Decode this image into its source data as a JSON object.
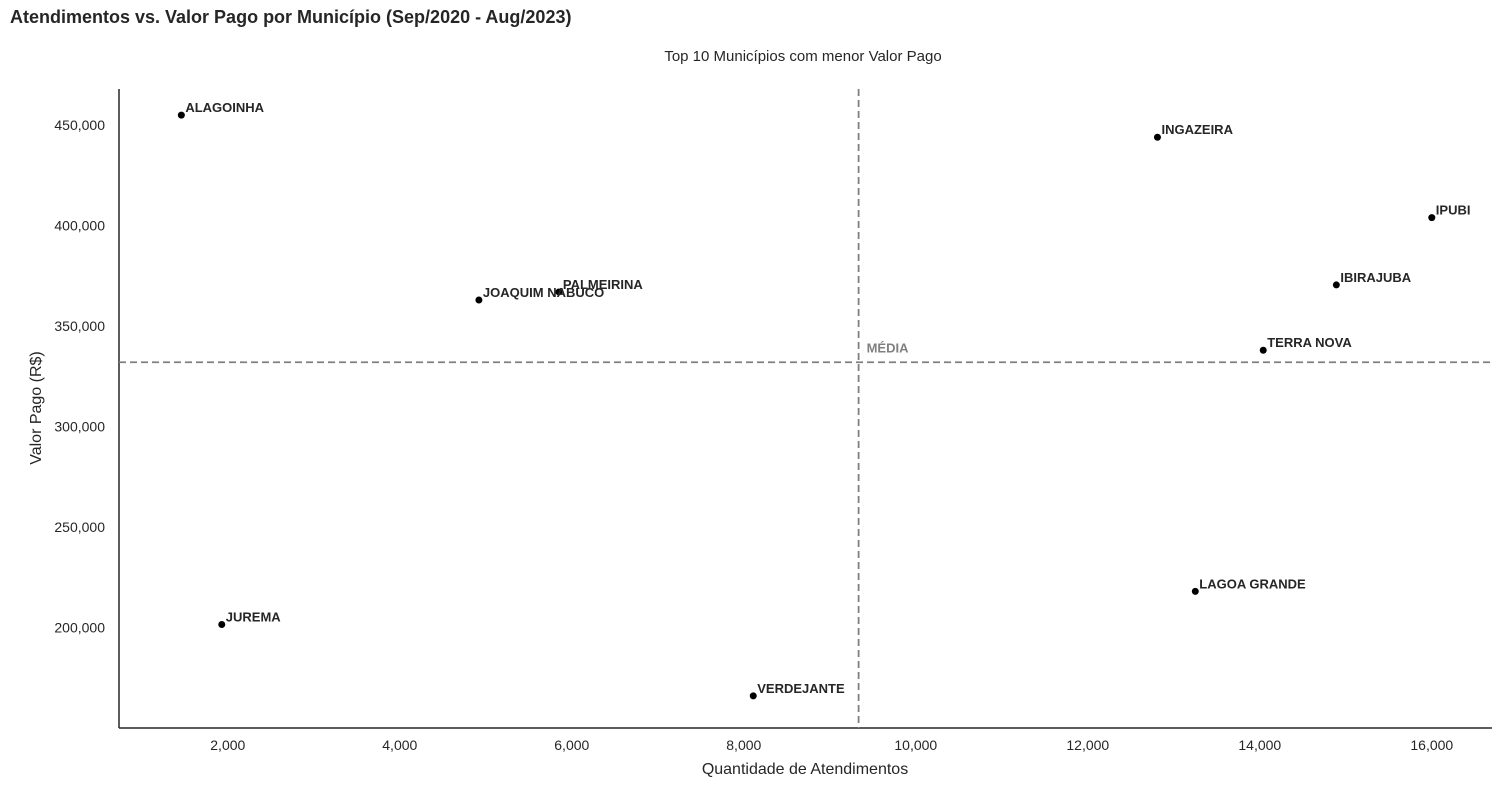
{
  "title": "Atendimentos vs. Valor Pago por Município (Sep/2020 - Aug/2023)",
  "chart_data": {
    "type": "scatter",
    "subtitle": "Top 10 Municípios com menor Valor Pago",
    "xlabel": "Quantidade de Atendimentos",
    "ylabel": "Valor Pago (R$)",
    "xlim": [
      735,
      16700
    ],
    "ylim": [
      150000,
      468000
    ],
    "x_ticks": [
      2000,
      4000,
      6000,
      8000,
      10000,
      12000,
      14000,
      16000
    ],
    "x_tick_labels": [
      "2,000",
      "4,000",
      "6,000",
      "8,000",
      "10,000",
      "12,000",
      "14,000",
      "16,000"
    ],
    "y_ticks": [
      200000,
      250000,
      300000,
      350000,
      400000,
      450000
    ],
    "y_tick_labels": [
      "200,000",
      "250,000",
      "300,000",
      "350,000",
      "400,000",
      "450,000"
    ],
    "mean_x": 9335,
    "mean_y": 332000,
    "mean_label": "MÉDIA",
    "grid": false,
    "point_color": "#000000",
    "mean_line_color": "#808080",
    "points": [
      {
        "label": "ALAGOINHA",
        "x": 1460,
        "y": 455000
      },
      {
        "label": "INGAZEIRA",
        "x": 12810,
        "y": 444000
      },
      {
        "label": "IPUBI",
        "x": 16000,
        "y": 404000
      },
      {
        "label": "IBIRAJUBA",
        "x": 14890,
        "y": 370500
      },
      {
        "label": "PALMEIRINA",
        "x": 5850,
        "y": 367000
      },
      {
        "label": "JOAQUIM NABUCO",
        "x": 4920,
        "y": 363000
      },
      {
        "label": "TERRA NOVA",
        "x": 14040,
        "y": 338000
      },
      {
        "label": "LAGOA GRANDE",
        "x": 13250,
        "y": 218000
      },
      {
        "label": "JUREMA",
        "x": 1930,
        "y": 201500
      },
      {
        "label": "VERDEJANTE",
        "x": 8110,
        "y": 166000
      }
    ]
  }
}
